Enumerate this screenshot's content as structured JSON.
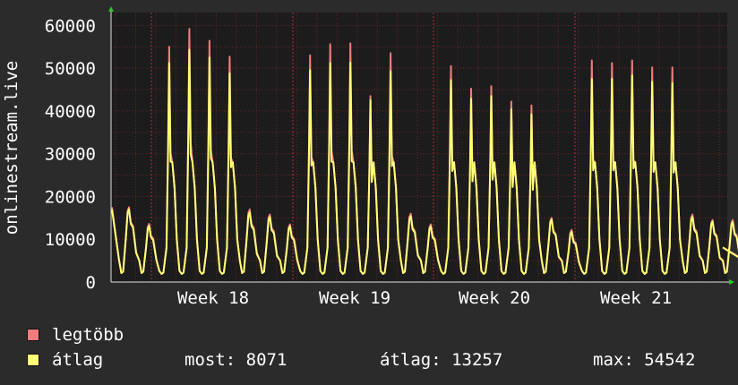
{
  "chart_data": {
    "type": "line",
    "ylabel": "onlinestream.live",
    "ylim": [
      0,
      63000
    ],
    "yticks": [
      0,
      10000,
      20000,
      30000,
      40000,
      50000,
      60000
    ],
    "x_labels": [
      "Week 18",
      "Week 19",
      "Week 20",
      "Week 21"
    ],
    "grid": true,
    "colors": {
      "background": "#1c1c1c",
      "grid": "#8a2a2a",
      "axis": "#e0e0e0",
      "legtobb": "#f07c7c",
      "atlag": "#ffff77"
    },
    "daily_peaks": {
      "legtobb": [
        17500,
        13600,
        55000,
        59200,
        56400,
        52700,
        17000,
        15800,
        13500,
        53000,
        55600,
        55800,
        43500,
        53500,
        16000,
        13500,
        50500,
        45200,
        45800,
        42200,
        41300,
        15000,
        12200,
        51800,
        51200,
        51800,
        50200,
        50200,
        15800,
        14500,
        14500
      ],
      "atlag": [
        17000,
        13100,
        51200,
        54300,
        52500,
        48800,
        16300,
        15200,
        13000,
        49500,
        51200,
        51300,
        42500,
        49300,
        15400,
        13000,
        47200,
        42800,
        43500,
        40400,
        39200,
        14600,
        11700,
        47500,
        47500,
        48300,
        46800,
        46500,
        15200,
        14100,
        14000
      ]
    },
    "last_value": 8071,
    "series": [
      {
        "name": "legtöbb",
        "color": "#f07c7c"
      },
      {
        "name": "átlag",
        "color": "#ffff77"
      }
    ]
  },
  "legend": {
    "legtobb_label": "legtöbb",
    "atlag_label": "átlag",
    "most": "most: 8071",
    "atlag_stat": "átlag: 13257",
    "max": "max: 54542"
  }
}
